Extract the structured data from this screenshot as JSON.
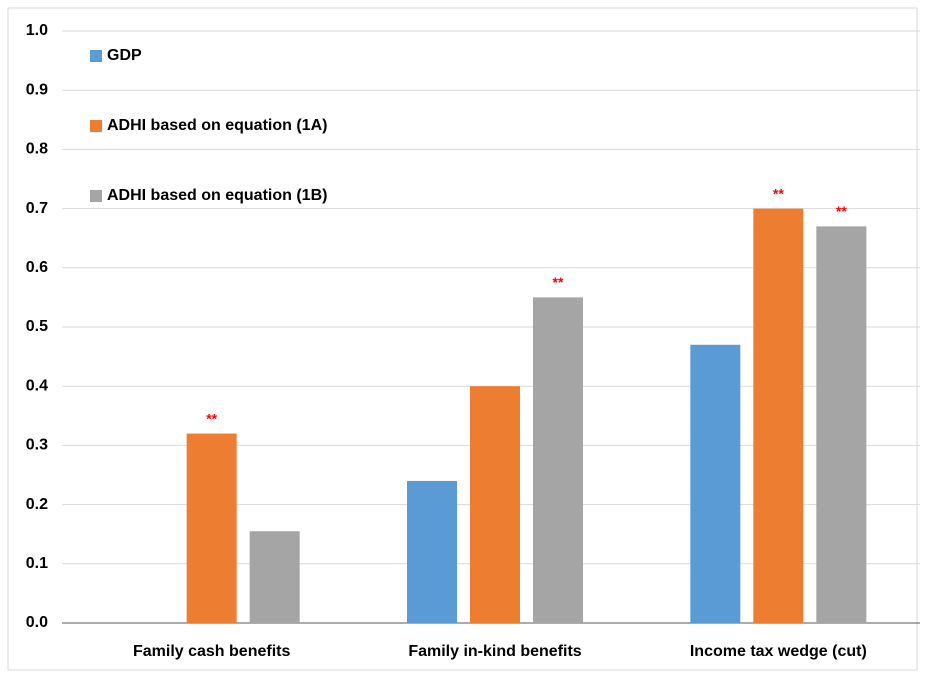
{
  "chart_data": {
    "type": "bar",
    "categories": [
      "Family cash benefits",
      "Family in-kind benefits",
      "Income tax wedge (cut)"
    ],
    "series": [
      {
        "name": "GDP",
        "color": "#5b9bd5",
        "values": [
          null,
          0.24,
          0.47
        ]
      },
      {
        "name": "ADHI based on equation (1A)",
        "color": "#ed7d31",
        "values": [
          0.32,
          0.4,
          0.7
        ],
        "annotations": [
          "**",
          null,
          "**"
        ]
      },
      {
        "name": "ADHI based on equation (1B)",
        "color": "#a5a5a5",
        "values": [
          0.155,
          0.55,
          0.67
        ],
        "annotations": [
          null,
          "**",
          "**"
        ]
      }
    ],
    "annotation_color": "#ff0000",
    "ylim": [
      0,
      1
    ],
    "yticks": [
      {
        "value": 0,
        "label": "0.0"
      },
      0.1,
      0.2,
      0.3,
      0.4,
      0.5,
      0.6,
      0.7,
      0.8,
      0.9,
      {
        "value": 1,
        "label": "1.0"
      }
    ],
    "grid": true,
    "legend": "top-left"
  }
}
